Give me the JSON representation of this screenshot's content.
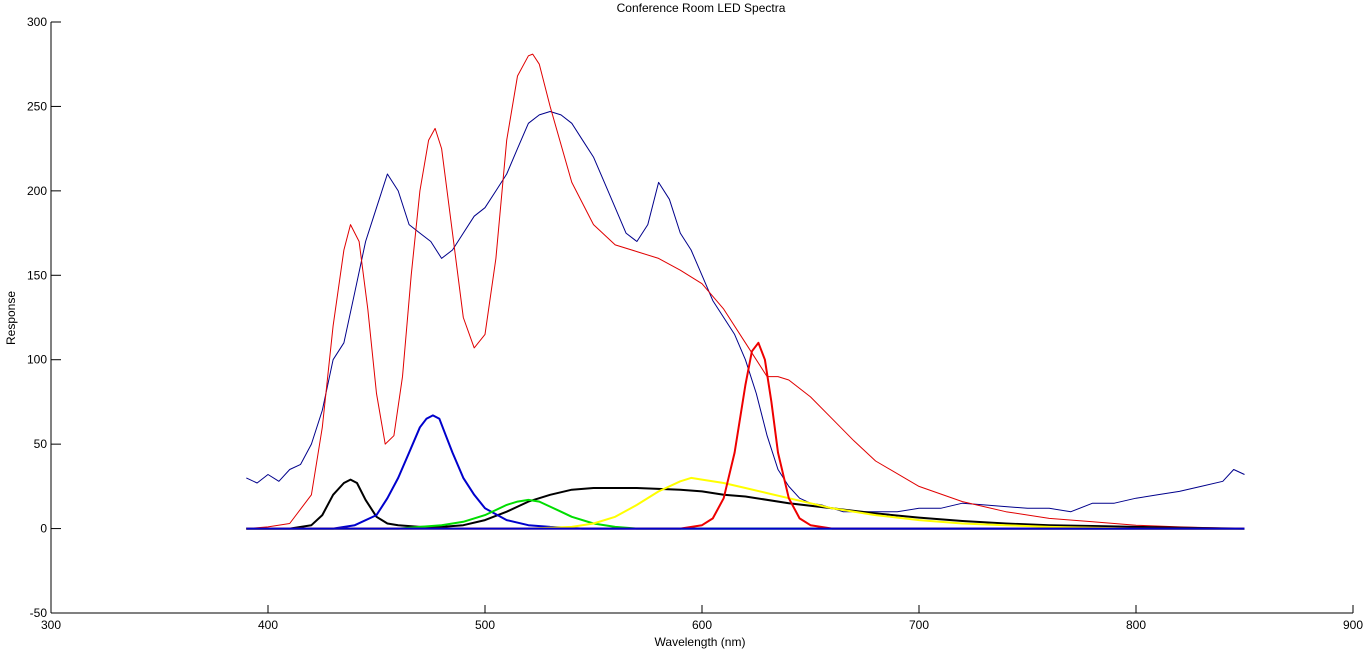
{
  "chart_data": {
    "type": "line",
    "title": "Conference Room LED Spectra",
    "xlabel": "Wavelength (nm)",
    "ylabel": "Response",
    "xlim": [
      300,
      900
    ],
    "ylim": [
      -50,
      300
    ],
    "xticks": [
      300,
      400,
      500,
      600,
      700,
      800,
      900
    ],
    "yticks": [
      -50,
      0,
      50,
      100,
      150,
      200,
      250,
      300
    ],
    "grid": false,
    "legend": "none",
    "series": [
      {
        "color": "#00008b",
        "stroke": 1,
        "x": [
          390,
          395,
          400,
          405,
          410,
          415,
          420,
          425,
          430,
          435,
          440,
          445,
          450,
          455,
          460,
          465,
          470,
          475,
          480,
          485,
          490,
          495,
          500,
          505,
          510,
          515,
          520,
          525,
          530,
          535,
          540,
          545,
          550,
          555,
          560,
          565,
          570,
          575,
          580,
          585,
          590,
          595,
          600,
          605,
          610,
          615,
          620,
          625,
          630,
          635,
          640,
          645,
          650,
          655,
          660,
          665,
          670,
          680,
          690,
          700,
          710,
          720,
          730,
          740,
          750,
          760,
          770,
          780,
          790,
          800,
          810,
          820,
          830,
          840,
          845,
          850
        ],
        "y": [
          30,
          27,
          32,
          28,
          35,
          38,
          50,
          70,
          100,
          110,
          140,
          170,
          190,
          210,
          200,
          180,
          175,
          170,
          160,
          165,
          175,
          185,
          190,
          200,
          210,
          225,
          240,
          245,
          247,
          245,
          240,
          230,
          220,
          205,
          190,
          175,
          170,
          180,
          205,
          195,
          175,
          165,
          150,
          135,
          125,
          115,
          100,
          80,
          55,
          35,
          25,
          18,
          15,
          14,
          12,
          10,
          10,
          10,
          10,
          12,
          12,
          15,
          14,
          13,
          12,
          12,
          10,
          15,
          15,
          18,
          20,
          22,
          25,
          28,
          35,
          32
        ]
      },
      {
        "color": "#e00000",
        "stroke": 1,
        "x": [
          390,
          400,
          410,
          420,
          425,
          430,
          435,
          438,
          442,
          446,
          450,
          454,
          458,
          462,
          466,
          470,
          474,
          477,
          480,
          485,
          490,
          495,
          500,
          505,
          510,
          515,
          520,
          522,
          525,
          530,
          540,
          550,
          560,
          570,
          580,
          590,
          600,
          610,
          620,
          630,
          635,
          640,
          650,
          660,
          670,
          680,
          700,
          720,
          740,
          760,
          780,
          800,
          820,
          850
        ],
        "y": [
          0,
          1,
          3,
          20,
          60,
          120,
          165,
          180,
          170,
          130,
          80,
          50,
          55,
          90,
          150,
          200,
          230,
          237,
          225,
          175,
          125,
          107,
          115,
          160,
          230,
          268,
          280,
          281,
          275,
          250,
          205,
          180,
          168,
          164,
          160,
          153,
          145,
          130,
          110,
          90,
          90,
          88,
          78,
          65,
          52,
          40,
          25,
          16,
          10,
          6,
          4,
          2,
          1,
          0
        ]
      },
      {
        "color": "#000000",
        "stroke": 2,
        "x": [
          390,
          410,
          420,
          425,
          430,
          435,
          438,
          441,
          445,
          450,
          455,
          460,
          470,
          480,
          490,
          500,
          510,
          520,
          530,
          540,
          550,
          560,
          570,
          580,
          590,
          600,
          610,
          620,
          640,
          660,
          680,
          700,
          720,
          740,
          760,
          780,
          800,
          820,
          850
        ],
        "y": [
          0,
          0,
          2,
          8,
          20,
          27,
          29,
          27,
          17,
          7,
          3,
          2,
          1,
          1,
          2,
          5,
          10,
          16,
          20,
          23,
          24,
          24,
          24,
          23.5,
          23,
          22,
          20,
          19,
          15,
          12,
          9,
          6.5,
          4.5,
          3,
          2,
          1.5,
          1,
          0.5,
          0
        ]
      },
      {
        "color": "#0000cc",
        "stroke": 2,
        "x": [
          390,
          430,
          440,
          450,
          455,
          460,
          465,
          470,
          473,
          476,
          479,
          482,
          485,
          490,
          495,
          500,
          510,
          520,
          530,
          545,
          850
        ],
        "y": [
          0,
          0,
          2,
          8,
          18,
          30,
          45,
          60,
          65,
          67,
          65,
          55,
          45,
          30,
          20,
          12,
          5,
          2,
          1,
          0,
          0
        ]
      },
      {
        "color": "#00dd00",
        "stroke": 2,
        "x": [
          390,
          460,
          470,
          480,
          490,
          500,
          505,
          510,
          515,
          520,
          525,
          530,
          535,
          540,
          550,
          560,
          570,
          850
        ],
        "y": [
          0,
          0,
          1,
          2,
          4,
          8,
          11,
          14,
          16,
          17,
          16,
          13,
          10,
          7,
          3,
          1,
          0,
          0
        ]
      },
      {
        "color": "#ffff00",
        "stroke": 2,
        "x": [
          390,
          520,
          540,
          550,
          560,
          570,
          580,
          590,
          595,
          600,
          610,
          620,
          630,
          640,
          660,
          680,
          700,
          720,
          740,
          760,
          780,
          800,
          850
        ],
        "y": [
          0,
          0,
          1,
          3,
          7,
          14,
          22,
          28,
          30,
          29,
          27,
          24,
          21,
          18,
          12,
          8,
          5,
          3,
          2,
          1,
          0.5,
          0,
          0
        ]
      },
      {
        "color": "#ee0000",
        "stroke": 2,
        "x": [
          390,
          590,
          600,
          605,
          610,
          615,
          620,
          623,
          626,
          629,
          632,
          635,
          640,
          645,
          650,
          660,
          850
        ],
        "y": [
          0,
          0,
          2,
          6,
          18,
          45,
          85,
          105,
          110,
          100,
          75,
          45,
          18,
          6,
          2,
          0,
          0
        ]
      },
      {
        "color": "#0000cc",
        "stroke": 2,
        "x": [
          390,
          850
        ],
        "y": [
          0,
          0
        ]
      }
    ]
  }
}
